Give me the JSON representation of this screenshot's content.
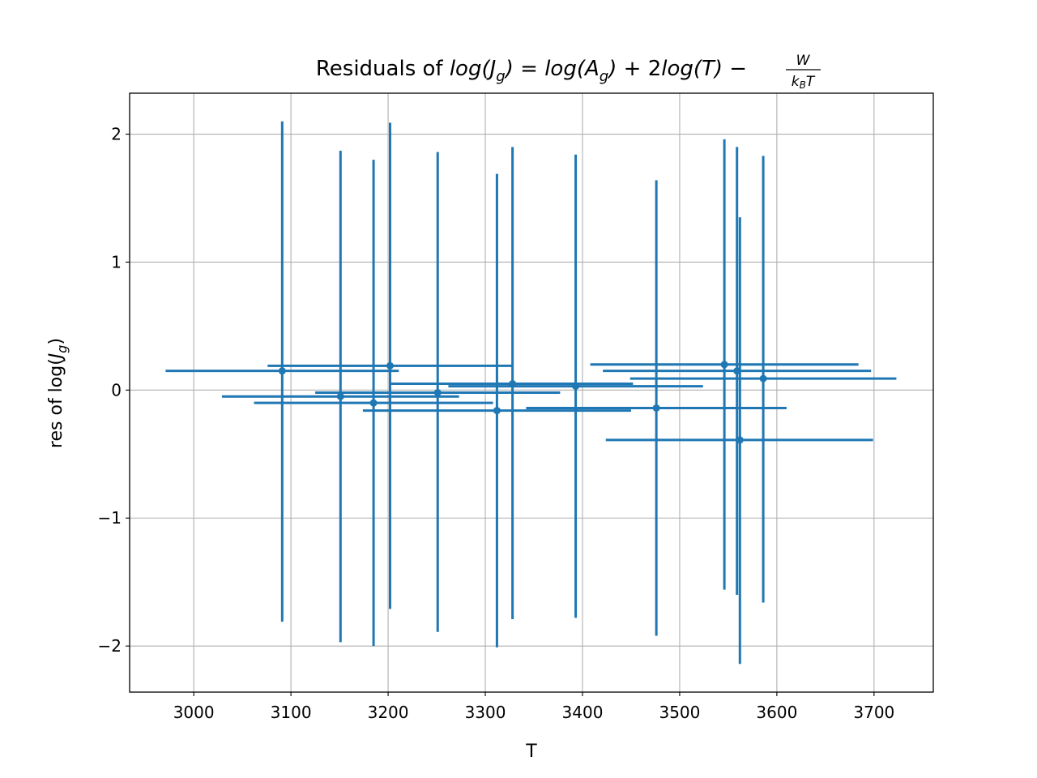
{
  "chart_data": {
    "type": "scatter",
    "title": {
      "prefix": "Residuals of ",
      "lhs_italic": "log(J",
      "lhs_sub": "g",
      "lhs_close": ")",
      "eq": " = ",
      "a_italic": "log(A",
      "a_sub": "g",
      "a_close": ")",
      "plus": " + 2",
      "t_italic": "log(T)",
      "minus": " − ",
      "frac_num": "W",
      "frac_den": "k",
      "frac_den_sub": "B",
      "frac_den_t": "T"
    },
    "xlabel": "T",
    "ylabel": {
      "text": "res of log(",
      "italic": "J",
      "sub": "g",
      "close": ")"
    },
    "xlim": [
      2934,
      3761
    ],
    "ylim": [
      -2.36,
      2.32
    ],
    "xticks": [
      3000,
      3100,
      3200,
      3300,
      3400,
      3500,
      3600,
      3700
    ],
    "yticks": [
      2,
      1,
      0,
      -1,
      -2
    ],
    "ytick_labels": [
      "2",
      "1",
      "0",
      "−1",
      "−2"
    ],
    "grid": true,
    "color": "#1f77b4",
    "points": [
      {
        "x": 3091,
        "y": 0.15,
        "xerr": [
          120,
          120
        ],
        "yerr": [
          1.96,
          1.95
        ]
      },
      {
        "x": 3151,
        "y": -0.05,
        "xerr": [
          122,
          122
        ],
        "yerr": [
          1.92,
          1.92
        ]
      },
      {
        "x": 3185,
        "y": -0.1,
        "xerr": [
          123,
          123
        ],
        "yerr": [
          1.9,
          1.9
        ]
      },
      {
        "x": 3202,
        "y": 0.19,
        "xerr": [
          126,
          126
        ],
        "yerr": [
          1.9,
          1.9
        ]
      },
      {
        "x": 3251,
        "y": -0.02,
        "xerr": [
          126,
          126
        ],
        "yerr": [
          1.87,
          1.88
        ]
      },
      {
        "x": 3312,
        "y": -0.16,
        "xerr": [
          138,
          138
        ],
        "yerr": [
          1.85,
          1.85
        ]
      },
      {
        "x": 3328,
        "y": 0.05,
        "xerr": [
          126,
          124
        ],
        "yerr": [
          1.84,
          1.85
        ]
      },
      {
        "x": 3393,
        "y": 0.03,
        "xerr": [
          131,
          131
        ],
        "yerr": [
          1.81,
          1.81
        ]
      },
      {
        "x": 3476,
        "y": -0.14,
        "xerr": [
          134,
          134
        ],
        "yerr": [
          1.78,
          1.78
        ]
      },
      {
        "x": 3546,
        "y": 0.2,
        "xerr": [
          138,
          138
        ],
        "yerr": [
          1.76,
          1.76
        ]
      },
      {
        "x": 3559,
        "y": 0.15,
        "xerr": [
          138,
          138
        ],
        "yerr": [
          1.75,
          1.75
        ]
      },
      {
        "x": 3562,
        "y": -0.39,
        "xerr": [
          138,
          137
        ],
        "yerr": [
          1.75,
          1.74
        ]
      },
      {
        "x": 3586,
        "y": 0.09,
        "xerr": [
          137,
          137
        ],
        "yerr": [
          1.75,
          1.74
        ]
      }
    ]
  }
}
